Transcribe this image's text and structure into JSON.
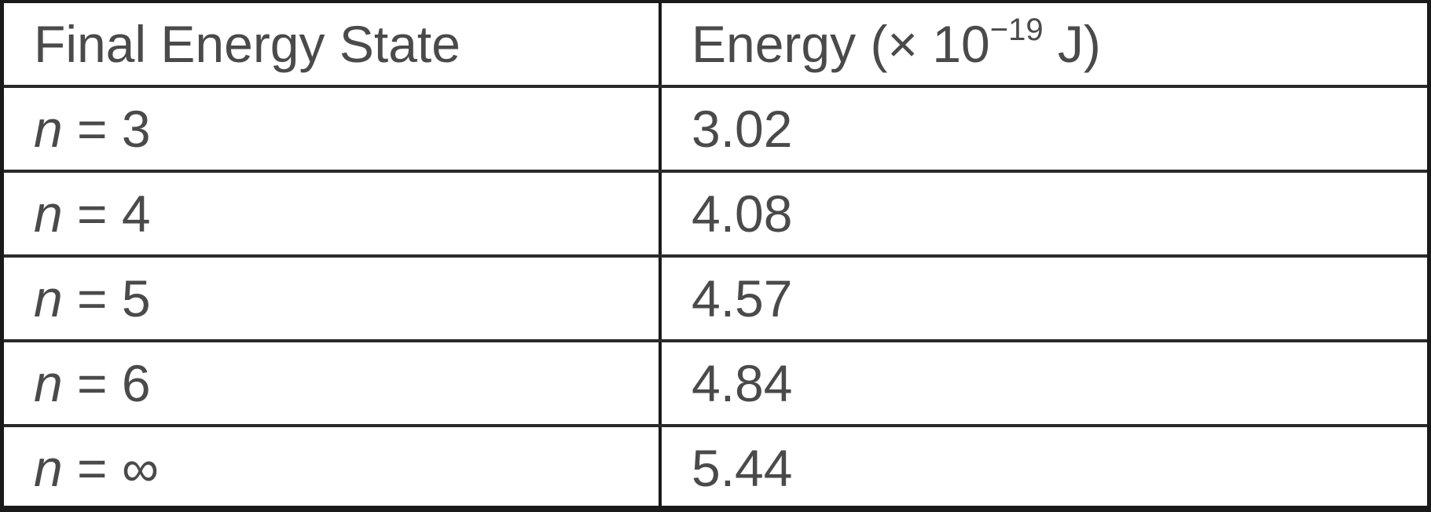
{
  "table": {
    "header": {
      "state": "Final Energy State",
      "energy_prefix": "Energy (× 10",
      "energy_exp": "−19",
      "energy_suffix": " J)"
    },
    "rows": [
      {
        "var": "n",
        "eq": " = 3",
        "energy": "3.02"
      },
      {
        "var": "n",
        "eq": " = 4",
        "energy": "4.08"
      },
      {
        "var": "n",
        "eq": " = 5",
        "energy": "4.57"
      },
      {
        "var": "n",
        "eq": " = 6",
        "energy": "4.84"
      },
      {
        "var": "n",
        "eq": " = ∞",
        "energy": "5.44"
      }
    ]
  }
}
